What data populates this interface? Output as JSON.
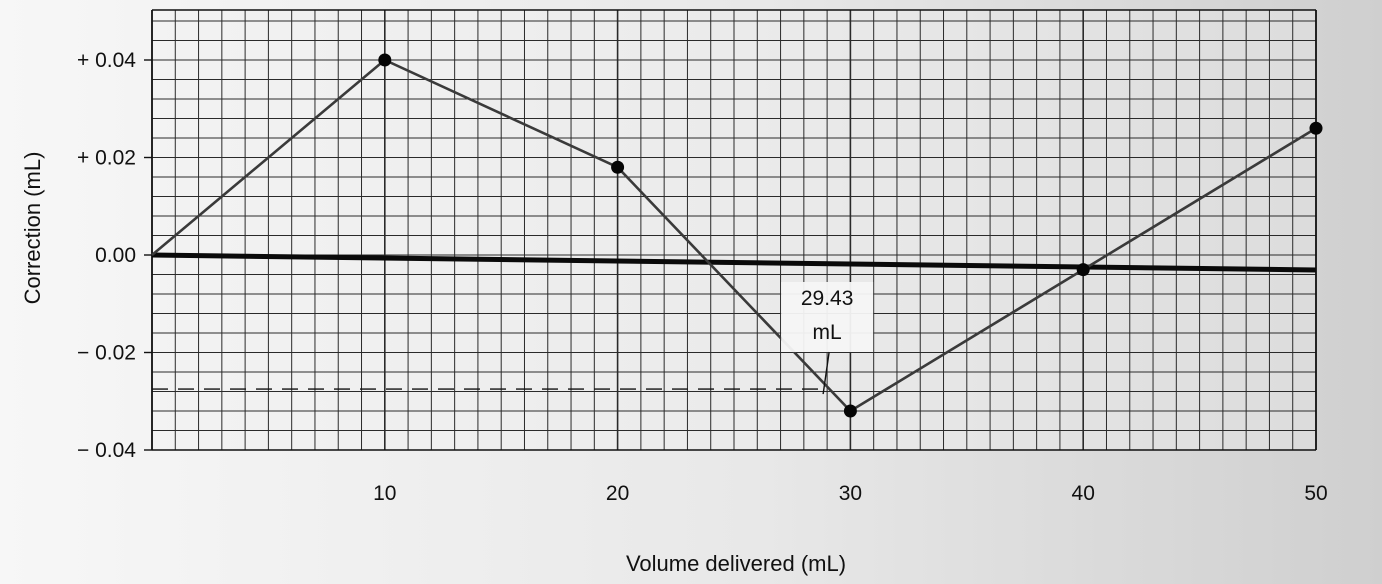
{
  "chart_data": {
    "type": "line",
    "xlabel": "Volume delivered (mL)",
    "ylabel": "Correction (mL)",
    "xlim": [
      0,
      50
    ],
    "ylim": [
      -0.04,
      0.04
    ],
    "x_ticks": [
      {
        "value": 10,
        "label": "10"
      },
      {
        "value": 20,
        "label": "20"
      },
      {
        "value": 30,
        "label": "30"
      },
      {
        "value": 40,
        "label": "40"
      },
      {
        "value": 50,
        "label": "50"
      }
    ],
    "y_ticks": [
      {
        "value": 0.04,
        "label": "+ 0.04"
      },
      {
        "value": 0.02,
        "label": "+ 0.02"
      },
      {
        "value": 0.0,
        "label": "0.00"
      },
      {
        "value": -0.02,
        "label": "− 0.02"
      },
      {
        "value": -0.04,
        "label": "− 0.04"
      }
    ],
    "grid": true,
    "series": [
      {
        "x": [
          0,
          10,
          20,
          30,
          40,
          50
        ],
        "y": [
          0.0,
          0.04,
          0.018,
          -0.032,
          -0.003,
          0.026
        ],
        "markers": [
          false,
          true,
          true,
          true,
          true,
          true
        ]
      }
    ],
    "reference_line": {
      "y": 0.0
    },
    "interpolation": {
      "x": 29.43,
      "y": -0.0275
    },
    "annotation": {
      "lines": [
        "29.43",
        "mL"
      ],
      "x": 29.43
    }
  }
}
